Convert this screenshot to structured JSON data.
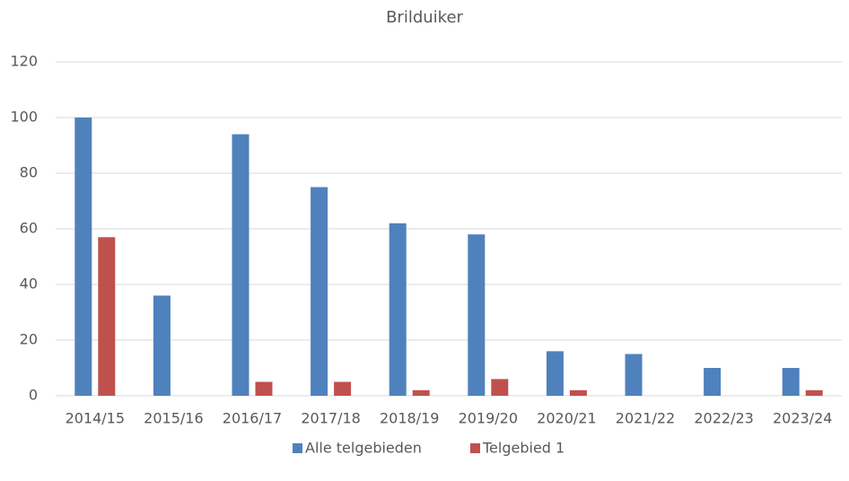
{
  "chart_data": {
    "type": "bar",
    "title": "Brilduiker",
    "categories": [
      "2014/15",
      "2015/16",
      "2016/17",
      "2017/18",
      "2018/19",
      "2019/20",
      "2020/21",
      "2021/22",
      "2022/23",
      "2023/24"
    ],
    "series": [
      {
        "name": "Alle telgebieden",
        "color": "#4f81bd",
        "values": [
          100,
          36,
          94,
          75,
          62,
          58,
          16,
          15,
          10,
          10
        ]
      },
      {
        "name": "Telgebied 1",
        "color": "#c0504d",
        "values": [
          57,
          0,
          5,
          5,
          2,
          6,
          2,
          0,
          0,
          2
        ]
      }
    ],
    "ylim": [
      0,
      120
    ],
    "yticks": [
      0,
      20,
      40,
      60,
      80,
      100,
      120
    ],
    "grid": true,
    "legend": "bottom"
  }
}
